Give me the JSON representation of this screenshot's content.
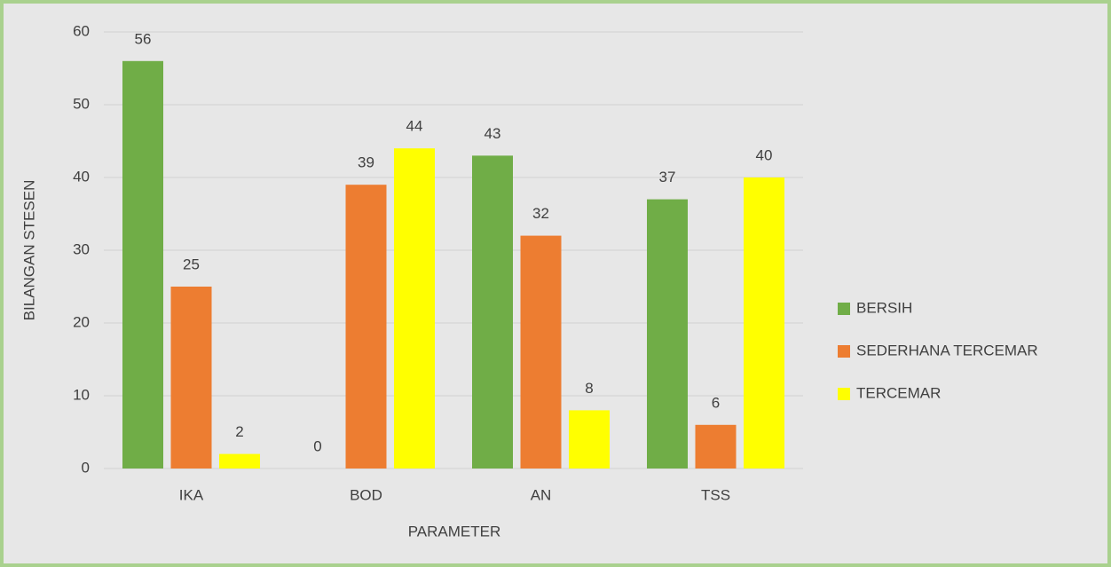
{
  "chart_data": {
    "type": "bar",
    "xlabel": "PARAMETER",
    "ylabel": "BILANGAN STESEN",
    "categories": [
      "IKA",
      "BOD",
      "AN",
      "TSS"
    ],
    "series": [
      {
        "name": "BERSIH",
        "color": "#70ad47",
        "values": [
          56,
          0,
          43,
          37
        ]
      },
      {
        "name": "SEDERHANA TERCEMAR",
        "color": "#ed7d31",
        "values": [
          25,
          39,
          32,
          6
        ]
      },
      {
        "name": "TERCEMAR",
        "color": "#ffff00",
        "values": [
          2,
          44,
          8,
          40
        ]
      }
    ],
    "ylim": [
      0,
      60
    ],
    "yticks": [
      0,
      10,
      20,
      30,
      40,
      50,
      60
    ],
    "grid": true,
    "legend": "right"
  }
}
